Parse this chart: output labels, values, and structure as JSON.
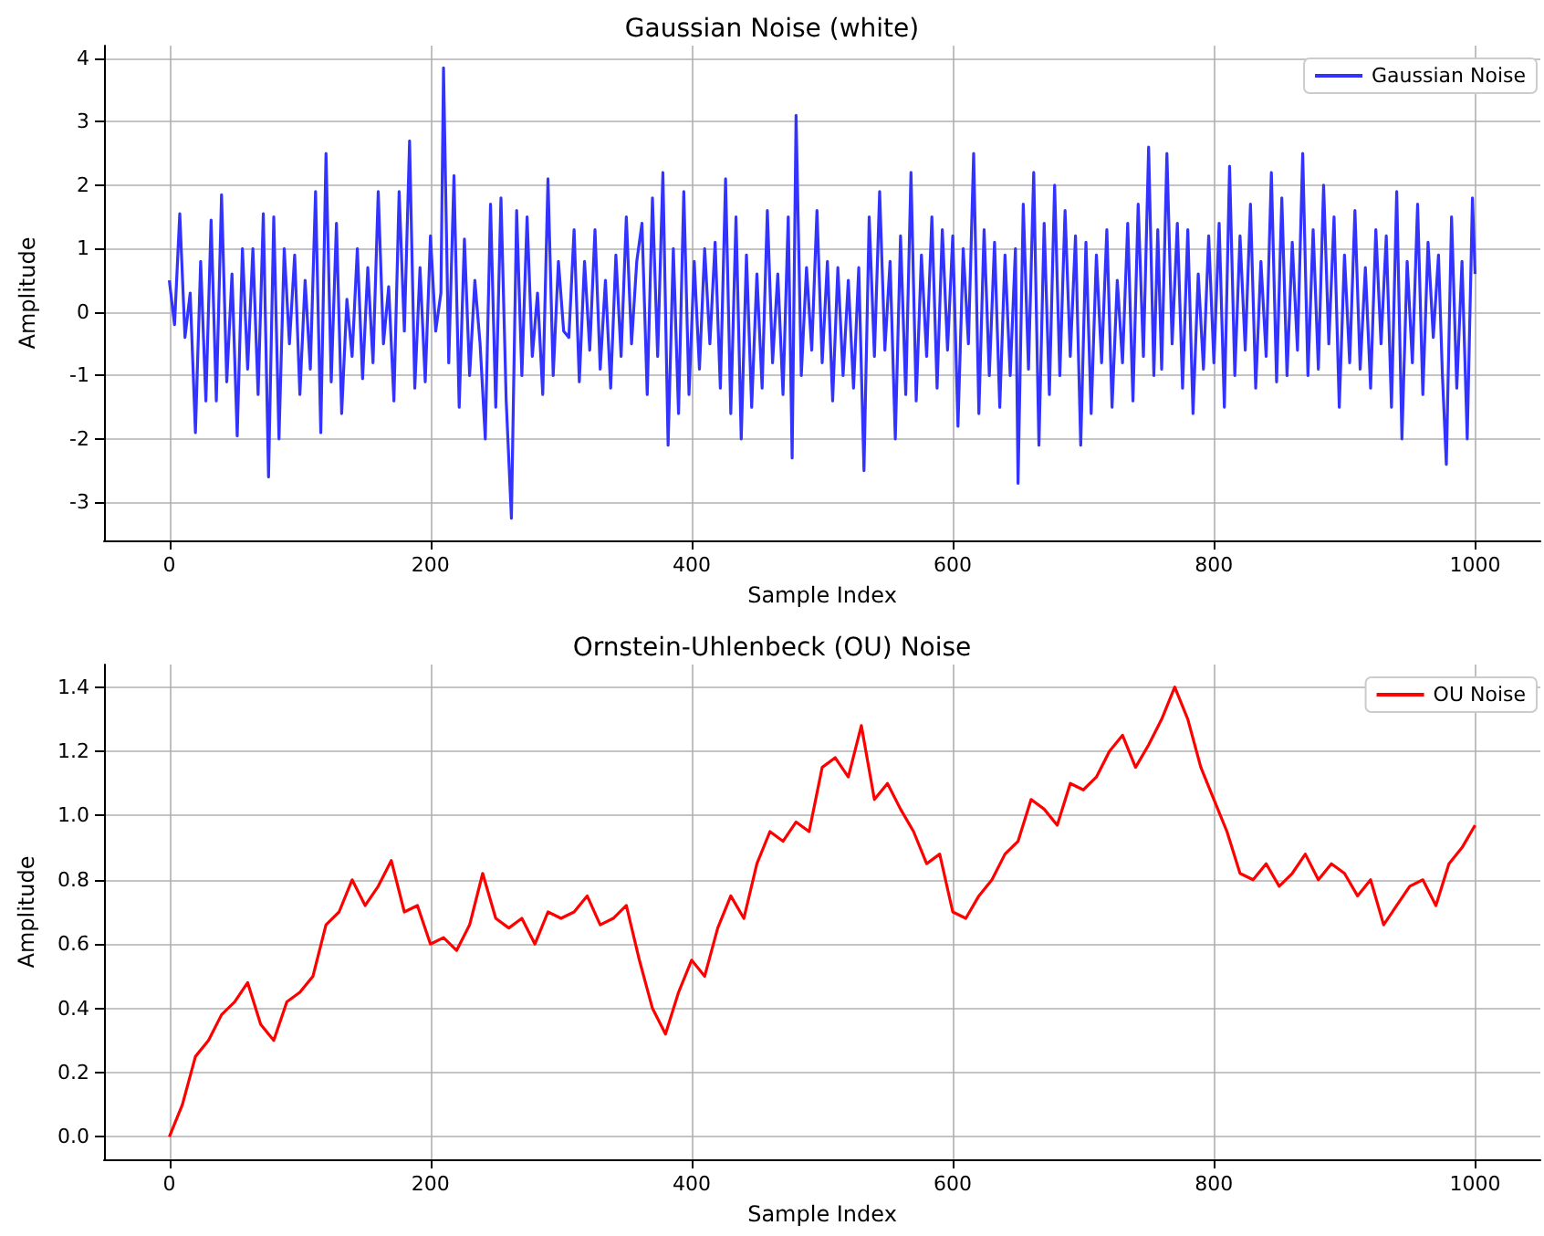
{
  "chart_data": [
    {
      "type": "line",
      "title": "Gaussian Noise (white)",
      "xlabel": "Sample Index",
      "ylabel": "Amplitude",
      "x": [
        0,
        4,
        8,
        12,
        16,
        20,
        24,
        28,
        32,
        36,
        40,
        44,
        48,
        52,
        56,
        60,
        64,
        68,
        72,
        76,
        80,
        84,
        88,
        92,
        96,
        100,
        104,
        108,
        112,
        116,
        120,
        124,
        128,
        132,
        136,
        140,
        144,
        148,
        152,
        156,
        160,
        164,
        168,
        172,
        176,
        180,
        184,
        188,
        192,
        196,
        200,
        204,
        208,
        210,
        214,
        218,
        222,
        226,
        230,
        234,
        238,
        242,
        246,
        250,
        254,
        258,
        262,
        266,
        270,
        274,
        278,
        282,
        286,
        290,
        294,
        298,
        302,
        306,
        310,
        314,
        318,
        322,
        326,
        330,
        334,
        338,
        342,
        346,
        350,
        354,
        358,
        362,
        366,
        370,
        374,
        378,
        382,
        386,
        390,
        394,
        398,
        402,
        406,
        410,
        414,
        418,
        422,
        426,
        430,
        434,
        438,
        442,
        446,
        450,
        454,
        458,
        462,
        466,
        470,
        474,
        477,
        480,
        484,
        488,
        492,
        496,
        500,
        504,
        508,
        512,
        516,
        520,
        524,
        528,
        532,
        536,
        540,
        544,
        548,
        552,
        556,
        560,
        564,
        568,
        572,
        576,
        580,
        584,
        588,
        592,
        596,
        600,
        604,
        608,
        612,
        616,
        620,
        624,
        628,
        632,
        636,
        640,
        644,
        648,
        650,
        654,
        658,
        662,
        666,
        670,
        674,
        678,
        682,
        686,
        690,
        694,
        698,
        702,
        706,
        710,
        714,
        718,
        722,
        726,
        730,
        734,
        738,
        742,
        746,
        750,
        754,
        757,
        760,
        764,
        768,
        772,
        776,
        780,
        784,
        788,
        792,
        796,
        800,
        804,
        808,
        812,
        816,
        820,
        824,
        828,
        832,
        836,
        840,
        844,
        848,
        852,
        856,
        860,
        864,
        868,
        872,
        876,
        880,
        884,
        888,
        892,
        896,
        900,
        904,
        908,
        912,
        916,
        920,
        924,
        928,
        932,
        936,
        940,
        944,
        948,
        952,
        956,
        960,
        964,
        968,
        972,
        975,
        978,
        982,
        986,
        990,
        994,
        998,
        1000
      ],
      "series": [
        {
          "name": "Gaussian Noise",
          "color": "#3333ff",
          "values": [
            0.5,
            -0.2,
            1.55,
            -0.4,
            0.3,
            -1.9,
            0.8,
            -1.4,
            1.45,
            -1.4,
            1.85,
            -1.1,
            0.6,
            -1.95,
            1.0,
            -0.9,
            1.0,
            -1.3,
            1.55,
            -2.6,
            1.5,
            -2.0,
            1.0,
            -0.5,
            0.9,
            -1.3,
            0.5,
            -0.9,
            1.9,
            -1.9,
            2.5,
            -1.1,
            1.4,
            -1.6,
            0.2,
            -0.7,
            1.0,
            -1.05,
            0.7,
            -0.8,
            1.9,
            -0.5,
            0.4,
            -1.4,
            1.9,
            -0.3,
            2.7,
            -1.2,
            0.7,
            -1.1,
            1.2,
            -0.3,
            0.3,
            3.85,
            -0.8,
            2.15,
            -1.5,
            1.15,
            -1.0,
            0.5,
            -0.5,
            -2.0,
            1.7,
            -1.5,
            1.8,
            -1.4,
            -3.25,
            1.6,
            -1.0,
            1.5,
            -0.7,
            0.3,
            -1.3,
            2.1,
            -1.0,
            0.8,
            -0.3,
            -0.4,
            1.3,
            -1.1,
            0.8,
            -0.6,
            1.3,
            -0.9,
            0.5,
            -1.2,
            0.9,
            -0.7,
            1.5,
            -0.5,
            0.8,
            1.4,
            -1.3,
            1.8,
            -0.7,
            2.2,
            -2.1,
            1.0,
            -1.6,
            1.9,
            -1.3,
            0.8,
            -0.9,
            1.0,
            -0.5,
            1.1,
            -1.2,
            2.1,
            -1.6,
            1.5,
            -2.0,
            0.9,
            -1.5,
            0.6,
            -1.2,
            1.6,
            -0.8,
            0.6,
            -1.3,
            1.5,
            -2.3,
            3.1,
            -1.0,
            0.7,
            -0.6,
            1.6,
            -0.8,
            0.8,
            -1.4,
            0.7,
            -1.0,
            0.5,
            -1.2,
            0.7,
            -2.5,
            1.5,
            -0.7,
            1.9,
            -0.6,
            0.8,
            -2.0,
            1.2,
            -1.3,
            2.2,
            -1.4,
            0.9,
            -0.7,
            1.5,
            -1.2,
            1.3,
            -0.6,
            1.2,
            -1.8,
            1.0,
            -0.5,
            2.5,
            -1.6,
            1.3,
            -1.0,
            1.1,
            -1.5,
            0.9,
            -1.0,
            1.0,
            -2.7,
            1.7,
            -0.9,
            2.2,
            -2.1,
            1.4,
            -1.3,
            2.0,
            -1.0,
            1.6,
            -0.7,
            1.2,
            -2.1,
            1.1,
            -1.6,
            0.9,
            -0.8,
            1.3,
            -1.5,
            0.5,
            -0.8,
            1.4,
            -1.4,
            1.7,
            -0.7,
            2.6,
            -1.0,
            1.3,
            -0.9,
            2.5,
            -0.5,
            1.4,
            -1.2,
            1.3,
            -1.6,
            0.6,
            -0.9,
            1.2,
            -0.8,
            1.4,
            -1.5,
            2.3,
            -1.0,
            1.2,
            -0.6,
            1.7,
            -1.2,
            0.8,
            -0.7,
            2.2,
            -1.1,
            1.8,
            -1.0,
            1.1,
            -0.6,
            2.5,
            -1.0,
            1.3,
            -0.9,
            2.0,
            -0.5,
            1.5,
            -1.5,
            0.9,
            -0.8,
            1.6,
            -0.9,
            0.7,
            -1.2,
            1.3,
            -0.5,
            1.2,
            -1.5,
            1.9,
            -2.0,
            0.8,
            -0.8,
            1.7,
            -1.3,
            1.1,
            -0.4,
            0.9,
            -1.0,
            -2.4,
            1.5,
            -1.2,
            0.8,
            -2.0,
            1.8,
            0.6
          ]
        }
      ],
      "xlim": [
        -50,
        1050
      ],
      "xticks": [
        0,
        200,
        400,
        600,
        800,
        1000
      ],
      "ylim": [
        -3.6,
        4.2
      ],
      "yticks": [
        -3,
        -2,
        -1,
        0,
        1,
        2,
        3,
        4
      ],
      "grid": true,
      "legend": "top right",
      "line_style": "solid",
      "marker": "none"
    },
    {
      "type": "line",
      "title": "Ornstein-Uhlenbeck (OU) Noise",
      "xlabel": "Sample Index",
      "ylabel": "Amplitude",
      "x": [
        0,
        10,
        20,
        30,
        40,
        50,
        60,
        70,
        80,
        90,
        100,
        110,
        120,
        130,
        140,
        150,
        160,
        170,
        180,
        190,
        200,
        210,
        220,
        230,
        240,
        250,
        260,
        270,
        280,
        290,
        300,
        310,
        320,
        330,
        340,
        350,
        360,
        370,
        380,
        390,
        400,
        410,
        420,
        430,
        440,
        450,
        460,
        470,
        480,
        490,
        500,
        510,
        520,
        530,
        540,
        550,
        560,
        570,
        580,
        590,
        600,
        610,
        620,
        630,
        640,
        650,
        660,
        670,
        680,
        690,
        700,
        710,
        720,
        730,
        740,
        750,
        760,
        770,
        780,
        790,
        800,
        810,
        820,
        830,
        840,
        850,
        860,
        870,
        880,
        890,
        900,
        910,
        920,
        930,
        940,
        950,
        960,
        970,
        980,
        990,
        1000
      ],
      "series": [
        {
          "name": "OU Noise",
          "color": "#ff0000",
          "values": [
            0,
            0.1,
            0.25,
            0.3,
            0.38,
            0.42,
            0.48,
            0.35,
            0.3,
            0.42,
            0.45,
            0.5,
            0.66,
            0.7,
            0.8,
            0.72,
            0.78,
            0.86,
            0.7,
            0.72,
            0.6,
            0.62,
            0.58,
            0.66,
            0.82,
            0.68,
            0.65,
            0.68,
            0.6,
            0.7,
            0.68,
            0.7,
            0.75,
            0.66,
            0.68,
            0.72,
            0.55,
            0.4,
            0.32,
            0.45,
            0.55,
            0.5,
            0.65,
            0.75,
            0.68,
            0.85,
            0.95,
            0.92,
            0.98,
            0.95,
            1.15,
            1.18,
            1.12,
            1.28,
            1.05,
            1.1,
            1.02,
            0.95,
            0.85,
            0.88,
            0.7,
            0.68,
            0.75,
            0.8,
            0.88,
            0.92,
            1.05,
            1.02,
            0.97,
            1.1,
            1.08,
            1.12,
            1.2,
            1.25,
            1.15,
            1.22,
            1.3,
            1.4,
            1.3,
            1.15,
            1.05,
            0.95,
            0.82,
            0.8,
            0.85,
            0.78,
            0.82,
            0.88,
            0.8,
            0.85,
            0.82,
            0.75,
            0.8,
            0.66,
            0.72,
            0.78,
            0.8,
            0.72,
            0.85,
            0.9,
            0.97
          ]
        }
      ],
      "xlim": [
        -50,
        1050
      ],
      "xticks": [
        0,
        200,
        400,
        600,
        800,
        1000
      ],
      "ylim": [
        -0.07,
        1.47
      ],
      "yticks": [
        {
          "value": 0,
          "label": "0.0"
        },
        {
          "value": 0.2,
          "label": "0.2"
        },
        {
          "value": 0.4,
          "label": "0.4"
        },
        {
          "value": 0.6,
          "label": "0.6"
        },
        {
          "value": 0.8,
          "label": "0.8"
        },
        {
          "value": 1,
          "label": "1.0"
        },
        {
          "value": 1.2,
          "label": "1.2"
        },
        {
          "value": 1.4,
          "label": "1.4"
        }
      ],
      "grid": true,
      "legend": "top right",
      "line_style": "solid",
      "marker": "none"
    }
  ]
}
